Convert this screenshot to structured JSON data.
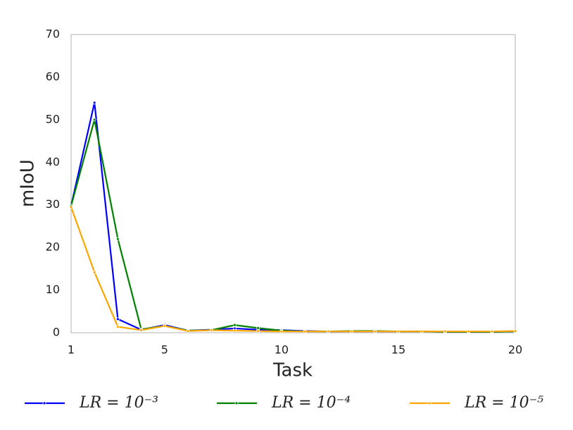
{
  "chart_data": {
    "type": "line",
    "x_label": "Task",
    "y_label": "mIoU",
    "x": [
      1,
      2,
      3,
      4,
      5,
      6,
      7,
      8,
      9,
      10,
      11,
      12,
      13,
      14,
      15,
      16,
      17,
      18,
      19,
      20
    ],
    "xlim": [
      1,
      20
    ],
    "xticks": [
      1,
      5,
      10,
      15,
      20
    ],
    "ylim": [
      0,
      70
    ],
    "yticks": [
      0,
      10,
      20,
      30,
      40,
      50,
      60,
      70
    ],
    "grid": false,
    "legend": "bottom",
    "series": [
      {
        "name": "LR = 10⁻³",
        "color": "#0000ff",
        "values": [
          29.8,
          54,
          3.2,
          0.7,
          1.8,
          0.5,
          0.7,
          1.0,
          0.7,
          0.6,
          0.4,
          0.3,
          0.3,
          0.3,
          0.3,
          0.3,
          0.2,
          0.2,
          0.2,
          0.3
        ]
      },
      {
        "name": "LR = 10⁻⁴",
        "color": "#008000",
        "values": [
          29.8,
          50,
          22,
          0.8,
          1.6,
          0.5,
          0.6,
          1.8,
          1.1,
          0.5,
          0.3,
          0.3,
          0.4,
          0.4,
          0.3,
          0.3,
          0.2,
          0.2,
          0.2,
          0.3
        ]
      },
      {
        "name": "LR = 10⁻⁵",
        "color": "#ffa500",
        "values": [
          29.5,
          14.2,
          1.4,
          0.6,
          1.6,
          0.4,
          0.6,
          0.5,
          0.4,
          0.3,
          0.3,
          0.3,
          0.3,
          0.3,
          0.3,
          0.3,
          0.3,
          0.3,
          0.3,
          0.4
        ]
      }
    ]
  }
}
